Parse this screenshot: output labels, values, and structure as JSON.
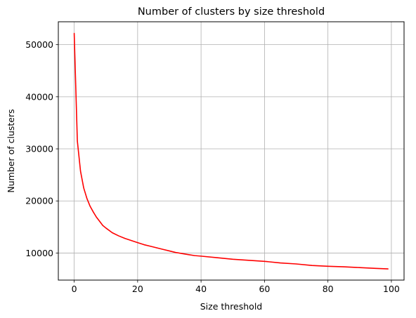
{
  "chart_data": {
    "type": "line",
    "title": "Number of clusters by size threshold",
    "xlabel": "Size threshold",
    "ylabel": "Number of clusters",
    "xlim": [
      -5,
      104
    ],
    "ylim": [
      4800,
      54400
    ],
    "xticks": [
      0,
      20,
      40,
      60,
      80,
      100
    ],
    "yticks": [
      10000,
      20000,
      30000,
      40000,
      50000
    ],
    "grid": true,
    "series": [
      {
        "name": "clusters",
        "color": "#ff0000",
        "x": [
          0,
          1,
          2,
          3,
          4,
          5,
          6,
          7,
          8,
          9,
          10,
          12,
          14,
          16,
          18,
          20,
          22,
          24,
          26,
          28,
          30,
          32,
          34,
          36,
          38,
          40,
          45,
          50,
          55,
          60,
          65,
          70,
          75,
          80,
          85,
          90,
          95,
          99
        ],
        "y": [
          52200,
          31500,
          25700,
          22500,
          20500,
          19000,
          17900,
          16900,
          16100,
          15300,
          14800,
          13900,
          13300,
          12800,
          12400,
          12000,
          11600,
          11300,
          11000,
          10700,
          10400,
          10100,
          9900,
          9700,
          9500,
          9400,
          9100,
          8800,
          8600,
          8400,
          8100,
          7900,
          7600,
          7450,
          7350,
          7200,
          7050,
          6950
        ]
      }
    ]
  }
}
